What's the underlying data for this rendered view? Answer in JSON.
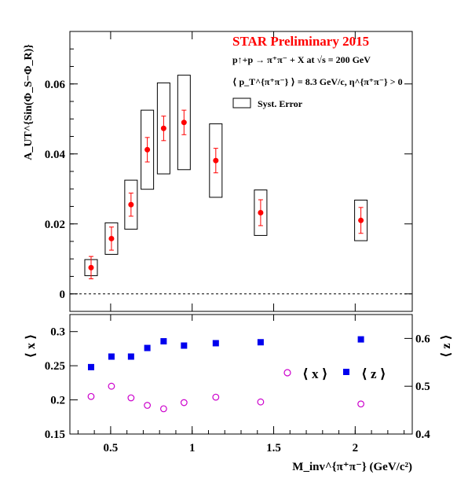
{
  "chart_data": [
    {
      "type": "scatter",
      "panel": "top",
      "title": "STAR Preliminary 2015",
      "title_color": "#ff0000",
      "annotations": {
        "reaction": "p↑+p → π⁺π⁻ + X at √s = 200 GeV",
        "kinematics": "⟨ p_T^{π⁺π⁻} ⟩ = 8.3 GeV/c,  η^{π⁺π⁻} > 0"
      },
      "legend": {
        "syst_label": "Syst. Error",
        "placement": "top-right"
      },
      "ylabel": "A_UT^{Sin(Φ_S−Φ_R)}",
      "ylim": [
        -0.005,
        0.075
      ],
      "yticks": [
        0,
        0.02,
        0.04,
        0.06
      ],
      "ytick_labels": [
        "0",
        "0.02",
        "0.04",
        "0.06"
      ],
      "xlim": [
        0.25,
        2.35
      ],
      "zero_line": "dashed",
      "series": [
        {
          "color": "#ff0000",
          "x": [
            0.38,
            0.505,
            0.625,
            0.725,
            0.825,
            0.95,
            1.145,
            1.42,
            2.035
          ],
          "y": [
            0.0075,
            0.0158,
            0.0255,
            0.0412,
            0.0473,
            0.049,
            0.0381,
            0.0232,
            0.021
          ],
          "stat_err": [
            0.0032,
            0.0033,
            0.0033,
            0.0035,
            0.0035,
            0.0035,
            0.0035,
            0.0037,
            0.0037
          ],
          "syst_err": [
            0.0023,
            0.0045,
            0.007,
            0.0113,
            0.013,
            0.0135,
            0.0105,
            0.0065,
            0.0058
          ]
        }
      ]
    },
    {
      "type": "scatter",
      "panel": "bottom",
      "xlabel": "M_inv^{π⁺π⁻} (GeV/c²)",
      "xlim": [
        0.25,
        2.35
      ],
      "xticks": [
        0.5,
        1,
        1.5,
        2
      ],
      "xtick_labels": [
        "0.5",
        "1",
        "1.5",
        "2"
      ],
      "ylabel_left": "⟨ x ⟩",
      "ylim_left": [
        0.15,
        0.325
      ],
      "yticks_left": [
        0.15,
        0.2,
        0.25,
        0.3
      ],
      "ytick_labels_left": [
        "0.15",
        "0.2",
        "0.25",
        "0.3"
      ],
      "ylabel_right": "⟨ z ⟩",
      "ylim_right": [
        0.4,
        0.65
      ],
      "yticks_right": [
        0.4,
        0.5,
        0.6
      ],
      "ytick_labels_right": [
        "0.4",
        "0.5",
        "0.6"
      ],
      "legend": {
        "x_label": "⟨ x ⟩",
        "z_label": "⟨ z ⟩",
        "placement": "right"
      },
      "series": [
        {
          "name": "⟨ x ⟩",
          "marker": "open-circle",
          "color": "#cc00cc",
          "axis": "left",
          "x": [
            0.38,
            0.505,
            0.625,
            0.725,
            0.825,
            0.95,
            1.145,
            1.42,
            2.035
          ],
          "y": [
            0.205,
            0.22,
            0.203,
            0.192,
            0.187,
            0.196,
            0.204,
            0.197,
            0.194
          ]
        },
        {
          "name": "⟨ z ⟩",
          "marker": "filled-square",
          "color": "#0000ee",
          "axis": "right",
          "x": [
            0.38,
            0.505,
            0.625,
            0.725,
            0.825,
            0.95,
            1.145,
            1.42,
            2.035
          ],
          "y": [
            0.54,
            0.562,
            0.562,
            0.58,
            0.594,
            0.585,
            0.59,
            0.592,
            0.598
          ]
        }
      ]
    }
  ]
}
